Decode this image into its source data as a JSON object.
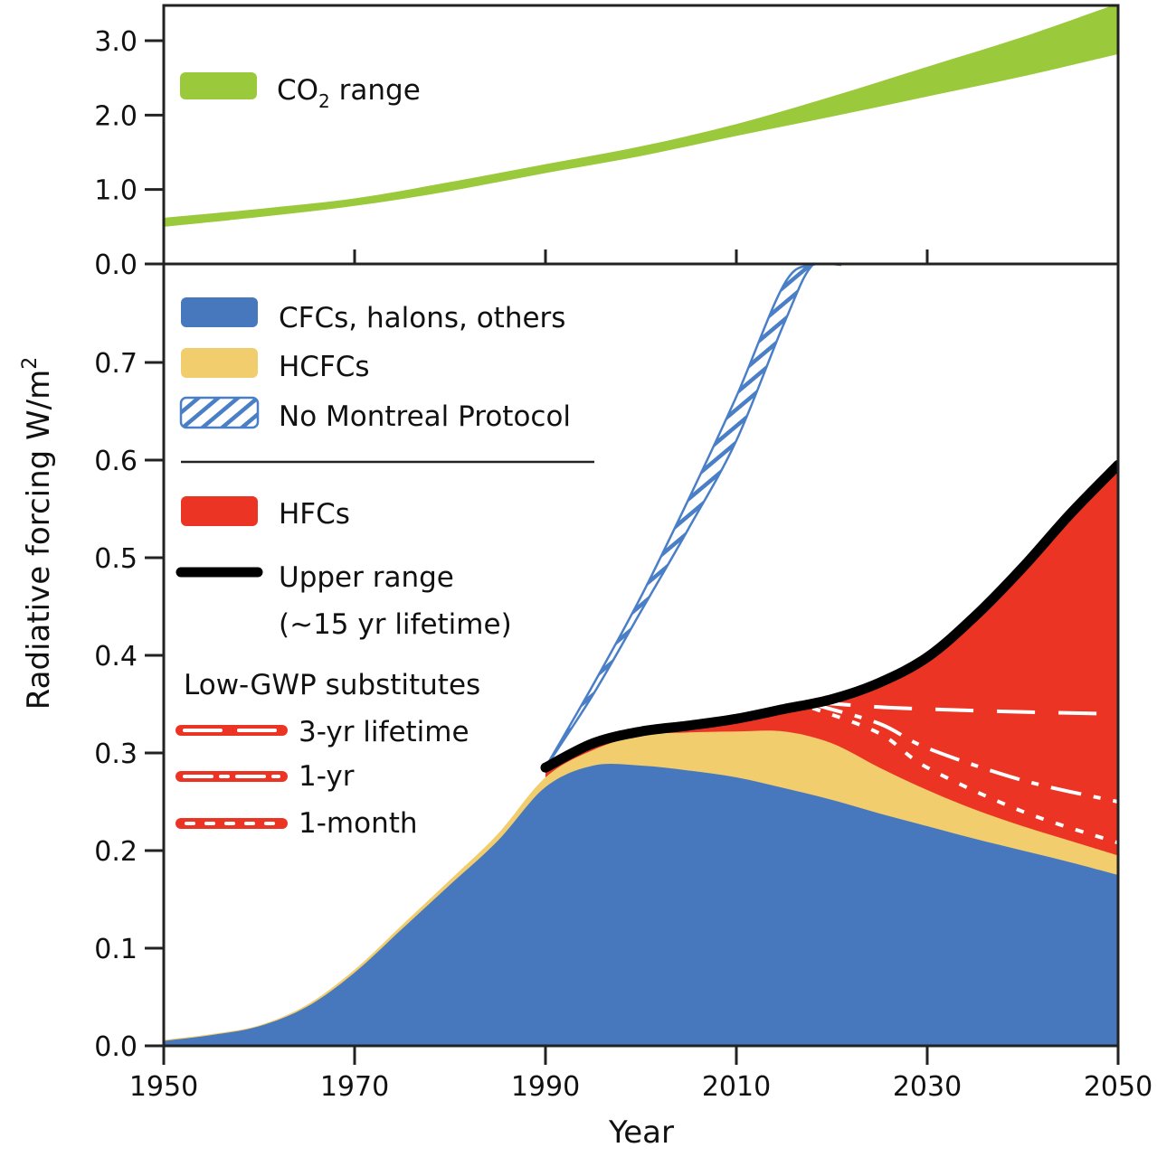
{
  "colors": {
    "co2": "#9ac93b",
    "cfc": "#4778bd",
    "hcfc": "#f1cd6e",
    "hfc": "#ec3424",
    "no_montreal": "#4a7fc7",
    "upper_range": "#000000",
    "substitute_line": "#ffffff"
  },
  "chart_data": [
    {
      "type": "area",
      "panel": "top",
      "title": "",
      "xlabel": "",
      "ylabel": "",
      "xlim": [
        1950,
        2050
      ],
      "ylim": [
        0,
        3.0
      ],
      "yticks": [
        0.0,
        1.0,
        2.0,
        3.0
      ],
      "ytick_labels": [
        "0.0",
        "1.0",
        "2.0",
        "3.0"
      ],
      "xticks": [
        1970,
        1990,
        2010,
        2030
      ],
      "legend": {
        "placement": "top-left",
        "entries": [
          {
            "label_main": "CO",
            "label_sub": "2",
            "label_rest": " range"
          }
        ]
      },
      "series": [
        {
          "name": "CO2 range",
          "x": [
            1950,
            1960,
            1970,
            1980,
            1990,
            2000,
            2010,
            2020,
            2030,
            2040,
            2050
          ],
          "lower": [
            0.5,
            0.63,
            0.78,
            0.98,
            1.22,
            1.45,
            1.72,
            1.98,
            2.25,
            2.52,
            2.82
          ],
          "upper": [
            0.62,
            0.74,
            0.88,
            1.1,
            1.34,
            1.58,
            1.88,
            2.25,
            2.65,
            3.05,
            3.5
          ]
        }
      ]
    },
    {
      "type": "area",
      "panel": "bottom",
      "title": "",
      "xlabel": "Year",
      "ylabel": "Radiative forcing W/m",
      "ylabel_sup": "2",
      "xlim": [
        1950,
        2050
      ],
      "ylim": [
        0,
        0.8
      ],
      "yticks": [
        0.0,
        0.1,
        0.2,
        0.3,
        0.4,
        0.5,
        0.6,
        0.7
      ],
      "ytick_labels": [
        "0.0",
        "0.1",
        "0.2",
        "0.3",
        "0.4",
        "0.5",
        "0.6",
        "0.7"
      ],
      "xticks": [
        1950,
        1970,
        1990,
        2010,
        2030,
        2050
      ],
      "xtick_labels": [
        "1950",
        "1970",
        "1990",
        "2010",
        "2030",
        "2050"
      ],
      "grid": false,
      "legend": {
        "placement": "top-left",
        "entries": [
          {
            "key": "cfc",
            "label": "CFCs, halons, others"
          },
          {
            "key": "hcfc",
            "label": "HCFCs"
          },
          {
            "key": "no_montreal",
            "label": "No Montreal Protocol"
          },
          {
            "key": "hfc",
            "label": "HFCs"
          },
          {
            "key": "upper_range",
            "label": "Upper range",
            "label2": "(~15 yr lifetime)"
          }
        ],
        "substitutes_title": "Low-GWP substitutes",
        "substitutes": [
          {
            "key": "sub3yr",
            "label": "3-yr lifetime"
          },
          {
            "key": "sub1yr",
            "label": "1-yr"
          },
          {
            "key": "sub1mo",
            "label": "1-month"
          }
        ]
      },
      "x": [
        1950,
        1955,
        1960,
        1965,
        1970,
        1975,
        1980,
        1985,
        1990,
        1995,
        2000,
        2005,
        2010,
        2015,
        2020,
        2025,
        2030,
        2035,
        2040,
        2045,
        2050
      ],
      "series": [
        {
          "name": "CFCs, halons, others",
          "cumulative_top": [
            0.005,
            0.011,
            0.02,
            0.04,
            0.075,
            0.12,
            0.165,
            0.21,
            0.265,
            0.287,
            0.287,
            0.282,
            0.275,
            0.264,
            0.252,
            0.238,
            0.225,
            0.212,
            0.2,
            0.188,
            0.175
          ]
        },
        {
          "name": "HCFCs",
          "cumulative_top": [
            0.006,
            0.012,
            0.021,
            0.042,
            0.078,
            0.124,
            0.17,
            0.217,
            0.275,
            0.303,
            0.318,
            0.321,
            0.322,
            0.322,
            0.31,
            0.285,
            0.262,
            0.242,
            0.225,
            0.21,
            0.195
          ]
        },
        {
          "name": "HFCs (upper range, ~15 yr lifetime)",
          "x": [
            1990,
            1995,
            2000,
            2005,
            2010,
            2015,
            2020,
            2025,
            2030,
            2035,
            2040,
            2045,
            2050
          ],
          "cumulative_top": [
            0.285,
            0.31,
            0.322,
            0.328,
            0.335,
            0.345,
            0.355,
            0.372,
            0.398,
            0.44,
            0.49,
            0.545,
            0.595
          ]
        },
        {
          "name": "No Montreal Protocol",
          "x": [
            1990,
            1995,
            2000,
            2005,
            2010,
            2015,
            2018,
            2021
          ],
          "lower": [
            0.285,
            0.36,
            0.445,
            0.53,
            0.62,
            0.74,
            0.8,
            0.8
          ],
          "upper": [
            0.285,
            0.37,
            0.46,
            0.56,
            0.665,
            0.78,
            0.8,
            0.8
          ]
        },
        {
          "name": "3-yr lifetime",
          "x": [
            2018,
            2025,
            2030,
            2040,
            2050
          ],
          "values": [
            0.352,
            0.347,
            0.345,
            0.342,
            0.34
          ]
        },
        {
          "name": "1-yr",
          "x": [
            2018,
            2025,
            2030,
            2040,
            2050
          ],
          "values": [
            0.35,
            0.33,
            0.305,
            0.272,
            0.25
          ]
        },
        {
          "name": "1-month",
          "x": [
            2018,
            2025,
            2030,
            2040,
            2050
          ],
          "values": [
            0.346,
            0.32,
            0.285,
            0.24,
            0.208
          ]
        }
      ]
    }
  ]
}
